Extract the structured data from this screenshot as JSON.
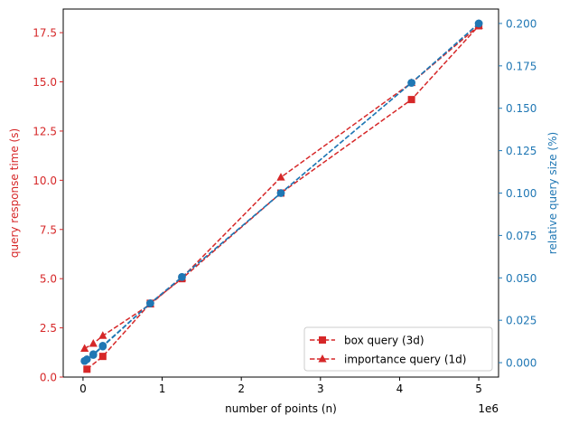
{
  "chart_data": {
    "type": "line",
    "x_multiplier": "1e6",
    "xlabel": "number of points (n)",
    "ylabel_left": "query response time (s)",
    "ylabel_right": "relative query size (%)",
    "xlim": [
      -0.25,
      5.25
    ],
    "x_ticks": [
      0,
      1,
      2,
      3,
      4,
      5
    ],
    "x_tick_labels": [
      "0",
      "1",
      "2",
      "3",
      "4",
      "5"
    ],
    "ylim_left": [
      0,
      18.7
    ],
    "y_ticks_left": [
      0,
      2.5,
      5,
      7.5,
      10,
      12.5,
      15,
      17.5
    ],
    "y_tick_labels_left": [
      "0.0",
      "2.5",
      "5.0",
      "7.5",
      "10.0",
      "12.5",
      "15.0",
      "17.5"
    ],
    "ylim_right": [
      -0.0085,
      0.2085
    ],
    "y_ticks_right": [
      0,
      0.025,
      0.05,
      0.075,
      0.1,
      0.125,
      0.15,
      0.175,
      0.2
    ],
    "y_tick_labels_right": [
      "0.000",
      "0.025",
      "0.050",
      "0.075",
      "0.100",
      "0.125",
      "0.150",
      "0.175",
      "0.200"
    ],
    "legend_position": "lower-right",
    "series": [
      {
        "name": "box query (3d)",
        "axis": "left",
        "color": "#d62728",
        "marker": "square",
        "linestyle": "dashed",
        "x": [
          0.05,
          0.25,
          0.85,
          1.25,
          2.5,
          4.15,
          5.0
        ],
        "y": [
          0.4,
          1.05,
          3.75,
          5.0,
          9.35,
          14.1,
          17.85
        ]
      },
      {
        "name": "importance query (1d)",
        "axis": "left",
        "color": "#d62728",
        "marker": "triangle",
        "linestyle": "dashed",
        "x": [
          0.02,
          0.13,
          0.25,
          0.85,
          1.25,
          2.5,
          4.15,
          5.0
        ],
        "y": [
          1.45,
          1.7,
          2.1,
          3.7,
          5.05,
          10.15,
          14.95,
          17.85
        ]
      },
      {
        "axis": "right",
        "color": "#1f77b4",
        "marker": "circle",
        "linestyle": "dashed",
        "x": [
          0.02,
          0.05,
          0.13,
          0.25,
          0.85,
          1.25,
          2.5,
          4.15,
          5.0
        ],
        "y": [
          0.001,
          0.002,
          0.0045,
          0.0095,
          0.035,
          0.0505,
          0.1,
          0.165,
          0.2
        ]
      },
      {
        "axis": "right",
        "color": "#1f77b4",
        "marker": "circle",
        "linestyle": "dashed",
        "x": [
          0.02,
          0.13,
          0.25,
          0.85,
          1.25,
          2.5,
          4.15,
          5.0
        ],
        "y": [
          0.001,
          0.005,
          0.01,
          0.035,
          0.0505,
          0.1,
          0.165,
          0.2
        ]
      }
    ]
  }
}
